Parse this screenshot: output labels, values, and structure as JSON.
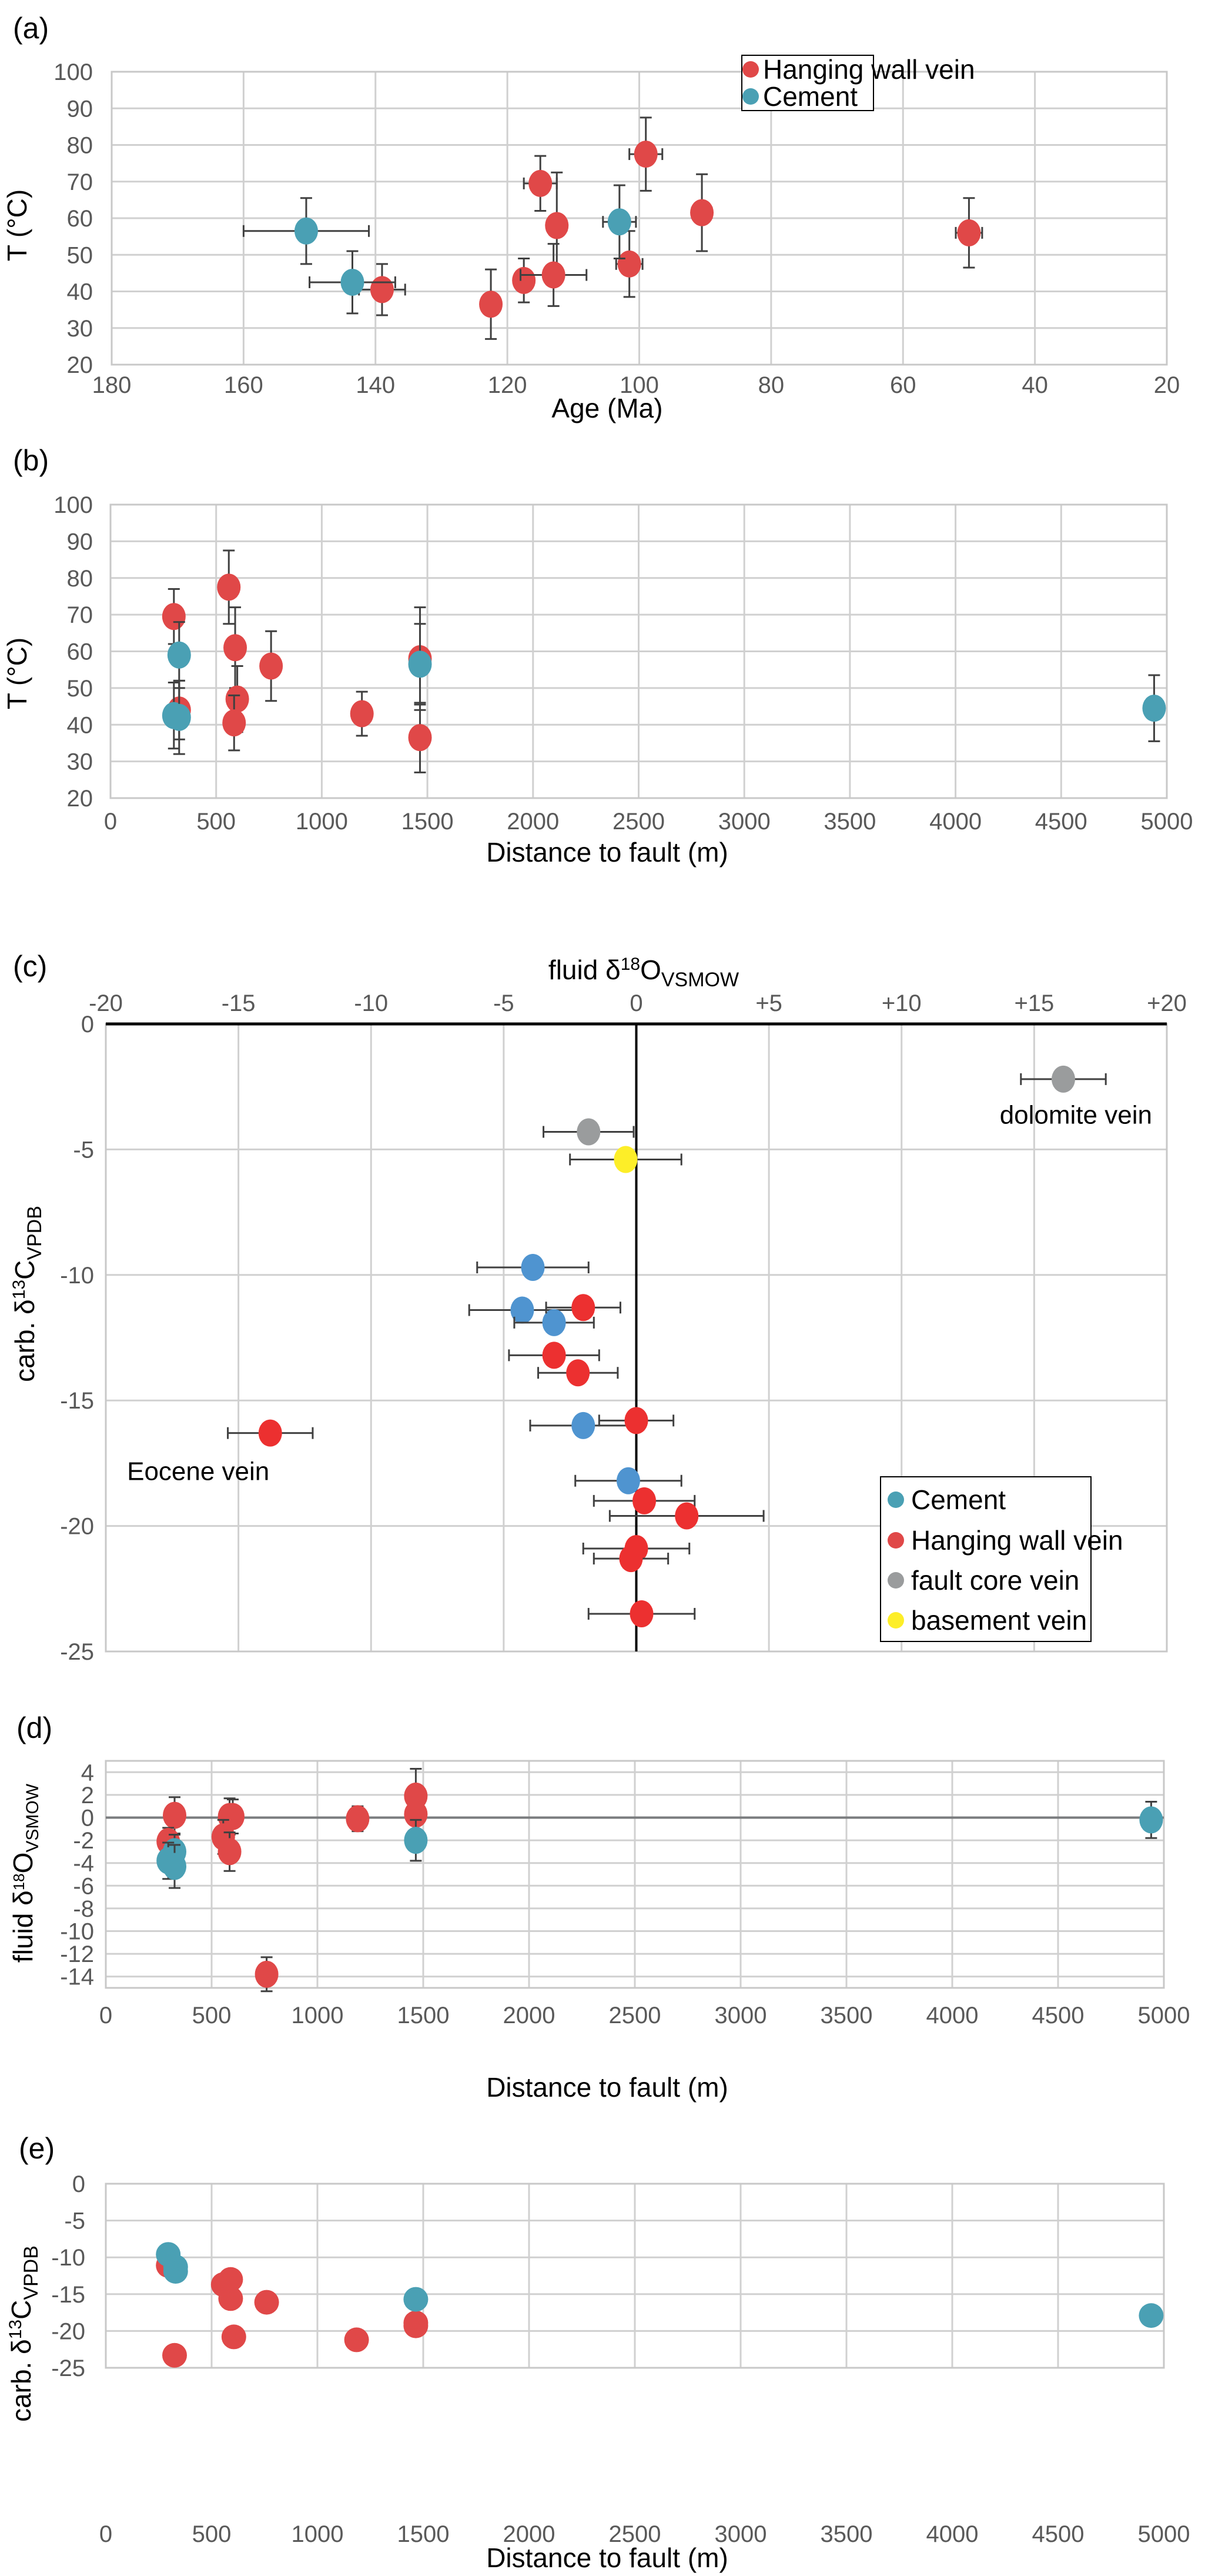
{
  "colors": {
    "hanging_wall_vein": "#e04848",
    "cement": "#4aa0b4",
    "cement_c": "#4f94d0",
    "hw_c": "#ec3030",
    "fault_core_vein": "#9a9c9d",
    "basement_vein": "#fdee28",
    "grid": "#d0d0d0",
    "errorbar": "#404040"
  },
  "chart_data": [
    {
      "id": "a",
      "panel_label": "(a)",
      "type": "scatter",
      "xlabel": "Age (Ma)",
      "ylabel": "T (°C)",
      "xlim": [
        180,
        20
      ],
      "x_reversed": true,
      "ylim": [
        20,
        100
      ],
      "xticks": [
        "180",
        "160",
        "140",
        "120",
        "100",
        "80",
        "60",
        "40",
        "20"
      ],
      "yticks": [
        "20",
        "30",
        "40",
        "50",
        "60",
        "70",
        "80",
        "90",
        "100"
      ],
      "grid": true,
      "legend": {
        "placement": "top-right",
        "entries": [
          {
            "label": "Hanging wall vein",
            "series": "hanging_wall_vein"
          },
          {
            "label": "Cement",
            "series": "cement"
          }
        ]
      },
      "series": [
        {
          "name": "Hanging wall vein",
          "color_key": "hanging_wall_vein",
          "points": [
            {
              "x": 139,
              "y": 40.5,
              "xerr": 3.5,
              "yerr": 7
            },
            {
              "x": 122.5,
              "y": 36.5,
              "xerr": 0,
              "yerr": 9.5
            },
            {
              "x": 117.5,
              "y": 43,
              "xerr": 0,
              "yerr": 6
            },
            {
              "x": 115,
              "y": 69.5,
              "xerr": 2.5,
              "yerr": 7.5
            },
            {
              "x": 112.5,
              "y": 58,
              "xerr": 1.5,
              "yerr": 14.5
            },
            {
              "x": 113,
              "y": 44.5,
              "xerr": 5,
              "yerr": 8.5
            },
            {
              "x": 99,
              "y": 77.5,
              "xerr": 2.5,
              "yerr": 10
            },
            {
              "x": 101.5,
              "y": 47.5,
              "xerr": 2,
              "yerr": 9
            },
            {
              "x": 90.5,
              "y": 61.5,
              "xerr": 1.5,
              "yerr": 10.5
            },
            {
              "x": 50,
              "y": 56,
              "xerr": 2,
              "yerr": 9.5
            }
          ]
        },
        {
          "name": "Cement",
          "color_key": "cement",
          "points": [
            {
              "x": 150.5,
              "y": 56.5,
              "xerr": 9.5,
              "yerr": 9
            },
            {
              "x": 143.5,
              "y": 42.5,
              "xerr": 6.5,
              "yerr": 8.5
            },
            {
              "x": 103,
              "y": 59,
              "xerr": 2.5,
              "yerr": 10
            }
          ]
        }
      ]
    },
    {
      "id": "b",
      "panel_label": "(b)",
      "type": "scatter",
      "xlabel": "Distance to fault (m)",
      "ylabel": "T (°C)",
      "xlim": [
        0,
        5000
      ],
      "ylim": [
        20,
        100
      ],
      "xticks": [
        "0",
        "500",
        "1000",
        "1500",
        "2000",
        "2500",
        "3000",
        "3500",
        "4000",
        "4500",
        "5000"
      ],
      "yticks": [
        "20",
        "30",
        "40",
        "50",
        "60",
        "70",
        "80",
        "90",
        "100"
      ],
      "grid": true,
      "series": [
        {
          "name": "Hanging wall vein",
          "color_key": "hanging_wall_vein",
          "points": [
            {
              "x": 300,
              "y": 69.5,
              "yerr": 7.5
            },
            {
              "x": 325,
              "y": 44,
              "yerr": 8
            },
            {
              "x": 560,
              "y": 77.5,
              "yerr": 10
            },
            {
              "x": 590,
              "y": 61,
              "yerr": 11
            },
            {
              "x": 600,
              "y": 47,
              "yerr": 9
            },
            {
              "x": 585,
              "y": 40.5,
              "yerr": 7.5
            },
            {
              "x": 760,
              "y": 56,
              "yerr": 9.5
            },
            {
              "x": 1190,
              "y": 43,
              "yerr": 6
            },
            {
              "x": 1465,
              "y": 58,
              "yerr": 14
            },
            {
              "x": 1465,
              "y": 36.5,
              "yerr": 9.5
            }
          ]
        },
        {
          "name": "Cement",
          "color_key": "cement",
          "points": [
            {
              "x": 325,
              "y": 59,
              "yerr": 9
            },
            {
              "x": 300,
              "y": 42.5,
              "yerr": 9
            },
            {
              "x": 325,
              "y": 42,
              "yerr": 10
            },
            {
              "x": 1465,
              "y": 56.5,
              "yerr": 11
            },
            {
              "x": 4940,
              "y": 44.5,
              "yerr": 9
            }
          ]
        }
      ]
    },
    {
      "id": "c",
      "panel_label": "(c)",
      "type": "scatter",
      "xlabel_parts": {
        "main": "fluid δ",
        "sup": "18",
        "after": "O",
        "sub": "VSMOW"
      },
      "ylabel_parts": {
        "main": "carb. δ",
        "sup": "13",
        "after": "C",
        "sub": "VPDB"
      },
      "xlim": [
        -20,
        20
      ],
      "ylim": [
        -25,
        0
      ],
      "x_axis_position": "top",
      "xticks": [
        "-20",
        "-15",
        "-10",
        "-5",
        "0",
        "+5",
        "+10",
        "+15",
        "+20"
      ],
      "yticks": [
        "0",
        "-5",
        "-10",
        "-15",
        "-20",
        "-25"
      ],
      "grid": true,
      "legend": {
        "placement": "bottom-right",
        "entries": [
          {
            "label": "Cement",
            "series": "cement"
          },
          {
            "label": "Hanging wall vein",
            "series": "hanging_wall_vein"
          },
          {
            "label": "fault core vein",
            "series": "fault_core_vein"
          },
          {
            "label": "basement vein",
            "series": "basement_vein"
          }
        ]
      },
      "annotations": [
        {
          "text": "dolomite vein",
          "x": 13.7,
          "y": -3.6
        },
        {
          "text": "Eocene vein",
          "x": -19.2,
          "y": -17.8
        }
      ],
      "series": [
        {
          "name": "Cement",
          "color_key": "cement_c",
          "points": [
            {
              "x": -3.9,
              "y": -9.7,
              "xerr": 2.1,
              "yerr": 0.35
            },
            {
              "x": -4.3,
              "y": -11.4,
              "xerr": 2.0
            },
            {
              "x": -3.1,
              "y": -11.9,
              "xerr": 1.5
            },
            {
              "x": -2.0,
              "y": -16.0,
              "xerr": 2.0
            },
            {
              "x": -0.3,
              "y": -18.2,
              "xerr": 2.0
            }
          ]
        },
        {
          "name": "Hanging wall vein",
          "color_key": "hw_c",
          "points": [
            {
              "x": -2.0,
              "y": -11.3,
              "xerr": 1.4
            },
            {
              "x": -3.1,
              "y": -13.2,
              "xerr": 1.7
            },
            {
              "x": -2.2,
              "y": -13.9,
              "xerr": 1.5
            },
            {
              "x": 0.0,
              "y": -15.8,
              "xerr": 1.4,
              "yerr": 0.35
            },
            {
              "x": -13.8,
              "y": -16.3,
              "xerr": 1.6
            },
            {
              "x": 0.3,
              "y": -19.0,
              "xerr": 1.9
            },
            {
              "x": 1.9,
              "y": -19.6,
              "xerr": 2.9
            },
            {
              "x": 0.0,
              "y": -20.9,
              "xerr": 2.0
            },
            {
              "x": -0.2,
              "y": -21.3,
              "xerr": 1.4
            },
            {
              "x": 0.2,
              "y": -23.5,
              "xerr": 2.0
            }
          ]
        },
        {
          "name": "fault core vein",
          "color_key": "fault_core_vein",
          "points": [
            {
              "x": 16.1,
              "y": -2.2,
              "xerr": 1.6
            },
            {
              "x": -1.8,
              "y": -4.3,
              "xerr": 1.7
            }
          ]
        },
        {
          "name": "basement vein",
          "color_key": "basement_vein",
          "points": [
            {
              "x": -0.4,
              "y": -5.4,
              "xerr": 2.1
            }
          ]
        }
      ]
    },
    {
      "id": "d",
      "panel_label": "(d)",
      "type": "scatter",
      "xlabel": "Distance to fault (m)",
      "ylabel_parts": {
        "main": "fluid δ",
        "sup": "18",
        "after": "O",
        "sub": "VSMOW"
      },
      "xlim": [
        0,
        5000
      ],
      "ylim": [
        -15,
        5
      ],
      "xticks": [
        "0",
        "500",
        "1000",
        "1500",
        "2000",
        "2500",
        "3000",
        "3500",
        "4000",
        "4500",
        "5000"
      ],
      "yticks": [
        "4",
        "2",
        "0",
        "-2",
        "-4",
        "-6",
        "-8",
        "-10",
        "-12",
        "-14"
      ],
      "ytick_values": [
        4,
        2,
        0,
        -2,
        -4,
        -6,
        -8,
        -10,
        -12,
        -14
      ],
      "zero_line": true,
      "grid": true,
      "series": [
        {
          "name": "Hanging wall vein",
          "color_key": "hanging_wall_vein",
          "points": [
            {
              "x": 325,
              "y": 0.2,
              "yerr": 1.6
            },
            {
              "x": 295,
              "y": -2.1,
              "yerr": 1.2
            },
            {
              "x": 585,
              "y": 0.1,
              "yerr": 1.6
            },
            {
              "x": 600,
              "y": 0.1,
              "yerr": 1.5
            },
            {
              "x": 555,
              "y": -1.7,
              "yerr": 1.5
            },
            {
              "x": 585,
              "y": -3.0,
              "yerr": 1.7
            },
            {
              "x": 760,
              "y": -13.8,
              "yerr": 1.5
            },
            {
              "x": 1190,
              "y": -0.1,
              "yerr": 1.1
            },
            {
              "x": 1465,
              "y": 1.9,
              "yerr": 2.4
            },
            {
              "x": 1465,
              "y": 0.3,
              "yerr": 0.7
            }
          ]
        },
        {
          "name": "Cement",
          "color_key": "cement",
          "points": [
            {
              "x": 325,
              "y": -3.0,
              "yerr": 1.5
            },
            {
              "x": 295,
              "y": -3.8,
              "yerr": 1.6
            },
            {
              "x": 325,
              "y": -4.3,
              "yerr": 1.9
            },
            {
              "x": 1465,
              "y": -2.0,
              "yerr": 1.8
            },
            {
              "x": 4940,
              "y": -0.2,
              "yerr": 1.6
            }
          ]
        }
      ]
    },
    {
      "id": "e",
      "panel_label": "(e)",
      "type": "scatter",
      "xlabel": "Distance to fault (m)",
      "ylabel_parts": {
        "main": "carb. δ",
        "sup": "13",
        "after": "C",
        "sub": "VPDB"
      },
      "xlim": [
        0,
        5000
      ],
      "ylim": [
        -25,
        0
      ],
      "xticks": [
        "0",
        "500",
        "1000",
        "1500",
        "2000",
        "2500",
        "3000",
        "3500",
        "4000",
        "4500",
        "5000"
      ],
      "yticks": [
        "0",
        "-5",
        "-10",
        "-15",
        "-20",
        "-25"
      ],
      "grid": true,
      "series": [
        {
          "name": "Hanging wall vein",
          "color_key": "hanging_wall_vein",
          "points": [
            {
              "x": 295,
              "y": -11.1
            },
            {
              "x": 590,
              "y": -13.0
            },
            {
              "x": 555,
              "y": -13.7
            },
            {
              "x": 590,
              "y": -15.6
            },
            {
              "x": 760,
              "y": -16.1
            },
            {
              "x": 605,
              "y": -20.8
            },
            {
              "x": 325,
              "y": -23.3
            },
            {
              "x": 1185,
              "y": -21.2
            },
            {
              "x": 1465,
              "y": -18.9
            },
            {
              "x": 1465,
              "y": -19.3
            }
          ]
        },
        {
          "name": "Cement",
          "color_key": "cement",
          "points": [
            {
              "x": 295,
              "y": -9.6
            },
            {
              "x": 330,
              "y": -11.3
            },
            {
              "x": 330,
              "y": -11.9
            },
            {
              "x": 1465,
              "y": -15.7
            },
            {
              "x": 4940,
              "y": -17.9
            }
          ]
        }
      ]
    }
  ]
}
